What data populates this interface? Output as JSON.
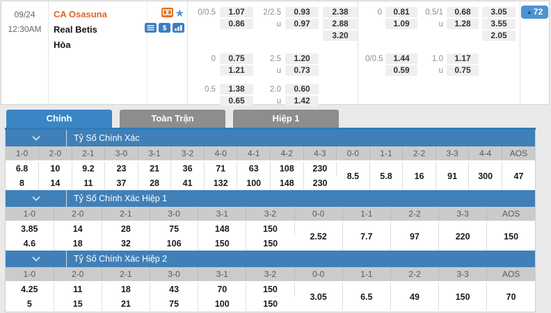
{
  "match": {
    "date": "09/24",
    "time": "12:30AM",
    "home_team": "CA Osasuna",
    "away_team": "Real Betis",
    "draw_label": "Hòa",
    "market_count": "72"
  },
  "icons": {
    "home_row": [
      "scoreboard-icon",
      "favorite-star-icon"
    ],
    "away_row": [
      "bet-slip-icon",
      "dollar-icon",
      "stats-icon"
    ],
    "icon_blue": "#3a7fc1",
    "icon_orange": "#e8711f",
    "star_blue": "#4e94d6"
  },
  "colors": {
    "accent_blue": "#3a86c4",
    "section_band_blue": "#4080b8",
    "tab_inactive_gray": "#8d8d8d",
    "badge_blue": "#4f92d1",
    "team_orange": "#e2622a",
    "odds_pill_gray": "#efefef",
    "table_header_gray": "#cbcbcb"
  },
  "tabs": [
    {
      "label": "Chính",
      "active": true
    },
    {
      "label": "Toàn Trận",
      "active": false
    },
    {
      "label": "Hiệp 1",
      "active": false
    }
  ],
  "odds_blocks": [
    {
      "id": "odds-left",
      "bands": [
        {
          "rows": [
            [
              {
                "l": "0/0.5"
              },
              {
                "v": "1.07"
              },
              {
                "l": "2/2.5"
              },
              {
                "v": "0.93"
              },
              {
                "v": "2.38"
              }
            ],
            [
              null,
              {
                "v": "0.86"
              },
              {
                "l": "u"
              },
              {
                "v": "0.97"
              },
              {
                "v": "2.88"
              }
            ],
            [
              null,
              null,
              null,
              null,
              {
                "v": "3.20"
              }
            ]
          ]
        },
        {
          "rows": [
            [
              {
                "l": "0"
              },
              {
                "v": "0.75"
              },
              {
                "l": "2.5"
              },
              {
                "v": "1.20"
              },
              null
            ],
            [
              null,
              {
                "v": "1.21"
              },
              {
                "l": "u"
              },
              {
                "v": "0.73"
              },
              null
            ]
          ]
        },
        {
          "rows": [
            [
              {
                "l": "0.5"
              },
              {
                "v": "1.38"
              },
              {
                "l": "2.0"
              },
              {
                "v": "0.60"
              },
              null
            ],
            [
              null,
              {
                "v": "0.65"
              },
              {
                "l": "u"
              },
              {
                "v": "1.42"
              },
              null
            ]
          ]
        }
      ]
    },
    {
      "id": "odds-right",
      "bands": [
        {
          "rows": [
            [
              {
                "l": "0"
              },
              {
                "v": "0.81"
              },
              {
                "l": "0.5/1"
              },
              {
                "v": "0.68"
              },
              {
                "v": "3.05"
              }
            ],
            [
              null,
              {
                "v": "1.09"
              },
              {
                "l": "u"
              },
              {
                "v": "1.28"
              },
              {
                "v": "3.55"
              }
            ],
            [
              null,
              null,
              null,
              null,
              {
                "v": "2.05"
              }
            ]
          ]
        },
        {
          "rows": [
            [
              {
                "l": "0/0.5"
              },
              {
                "v": "1.44"
              },
              {
                "l": "1.0"
              },
              {
                "v": "1.17"
              },
              null
            ],
            [
              null,
              {
                "v": "0.59"
              },
              {
                "l": "u"
              },
              {
                "v": "0.75"
              },
              null
            ]
          ]
        }
      ]
    }
  ],
  "score_tables": [
    {
      "title": "Tỷ Số Chính Xác",
      "columns": [
        {
          "h": "1-0",
          "v1": "6.8",
          "v2": "8"
        },
        {
          "h": "2-0",
          "v1": "10",
          "v2": "14"
        },
        {
          "h": "2-1",
          "v1": "9.2",
          "v2": "11"
        },
        {
          "h": "3-0",
          "v1": "23",
          "v2": "37"
        },
        {
          "h": "3-1",
          "v1": "21",
          "v2": "28"
        },
        {
          "h": "3-2",
          "v1": "36",
          "v2": "41"
        },
        {
          "h": "4-0",
          "v1": "71",
          "v2": "132"
        },
        {
          "h": "4-1",
          "v1": "63",
          "v2": "100"
        },
        {
          "h": "4-2",
          "v1": "108",
          "v2": "148"
        },
        {
          "h": "4-3",
          "v1": "230",
          "v2": "230"
        },
        {
          "h": "0-0",
          "v": "8.5"
        },
        {
          "h": "1-1",
          "v": "5.8"
        },
        {
          "h": "2-2",
          "v": "16"
        },
        {
          "h": "3-3",
          "v": "91"
        },
        {
          "h": "4-4",
          "v": "300"
        },
        {
          "h": "AOS",
          "v": "47"
        }
      ]
    },
    {
      "title": "Tỷ Số Chính Xác Hiệp 1",
      "columns": [
        {
          "h": "1-0",
          "v1": "3.85",
          "v2": "4.6"
        },
        {
          "h": "2-0",
          "v1": "14",
          "v2": "18"
        },
        {
          "h": "2-1",
          "v1": "28",
          "v2": "32"
        },
        {
          "h": "3-0",
          "v1": "75",
          "v2": "106"
        },
        {
          "h": "3-1",
          "v1": "148",
          "v2": "150"
        },
        {
          "h": "3-2",
          "v1": "150",
          "v2": "150"
        },
        {
          "h": "0-0",
          "v": "2.52"
        },
        {
          "h": "1-1",
          "v": "7.7"
        },
        {
          "h": "2-2",
          "v": "97"
        },
        {
          "h": "3-3",
          "v": "220"
        },
        {
          "h": "AOS",
          "v": "150"
        }
      ]
    },
    {
      "title": "Tỷ Số Chính Xác Hiệp 2",
      "columns": [
        {
          "h": "1-0",
          "v1": "4.25",
          "v2": "5"
        },
        {
          "h": "2-0",
          "v1": "11",
          "v2": "15"
        },
        {
          "h": "2-1",
          "v1": "18",
          "v2": "21"
        },
        {
          "h": "3-0",
          "v1": "43",
          "v2": "75"
        },
        {
          "h": "3-1",
          "v1": "70",
          "v2": "100"
        },
        {
          "h": "3-2",
          "v1": "150",
          "v2": "150"
        },
        {
          "h": "0-0",
          "v": "3.05"
        },
        {
          "h": "1-1",
          "v": "6.5"
        },
        {
          "h": "2-2",
          "v": "49"
        },
        {
          "h": "3-3",
          "v": "150"
        },
        {
          "h": "AOS",
          "v": "70"
        }
      ]
    }
  ]
}
